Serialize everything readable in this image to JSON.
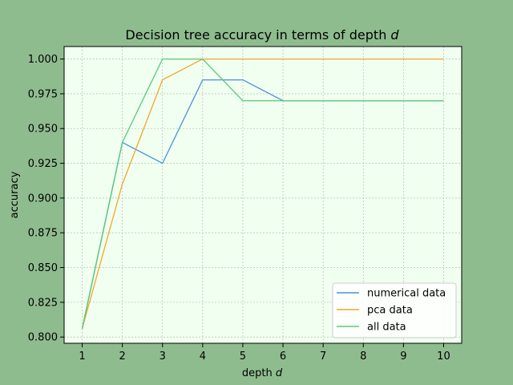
{
  "chart_data": {
    "type": "line",
    "title_main": "Decision tree accuracy in terms of depth ",
    "title_var": "d",
    "xlabel_main": "depth ",
    "xlabel_var": "d",
    "ylabel": "accuracy",
    "x": [
      1,
      2,
      3,
      4,
      5,
      6,
      7,
      8,
      9,
      10
    ],
    "xticks": [
      "1",
      "2",
      "3",
      "4",
      "5",
      "6",
      "7",
      "8",
      "9",
      "10"
    ],
    "yticks": [
      "0.800",
      "0.825",
      "0.850",
      "0.875",
      "0.900",
      "0.925",
      "0.950",
      "0.975",
      "1.000"
    ],
    "ytick_values": [
      0.8,
      0.825,
      0.85,
      0.875,
      0.9,
      0.925,
      0.95,
      0.975,
      1.0
    ],
    "xlim": [
      0.55,
      10.45
    ],
    "ylim": [
      0.7955,
      1.009
    ],
    "grid": true,
    "legend_position": "lower-right",
    "series": [
      {
        "name": "numerical data",
        "color": "#4a90d9",
        "values": [
          0.806,
          0.94,
          0.925,
          0.985,
          0.985,
          0.97,
          0.97,
          0.97,
          0.97,
          0.97
        ]
      },
      {
        "name": "pca data",
        "color": "#f5a623",
        "values": [
          0.806,
          0.91,
          0.985,
          1.0,
          1.0,
          1.0,
          1.0,
          1.0,
          1.0,
          1.0
        ]
      },
      {
        "name": "all data",
        "color": "#5cc87a",
        "values": [
          0.806,
          0.94,
          1.0,
          1.0,
          0.97,
          0.97,
          0.97,
          0.97,
          0.97,
          0.97
        ]
      }
    ],
    "colors": {
      "figure_background": "#8fbc8f",
      "plot_background": "#f0fff0",
      "grid": "#b0b0b0"
    }
  }
}
